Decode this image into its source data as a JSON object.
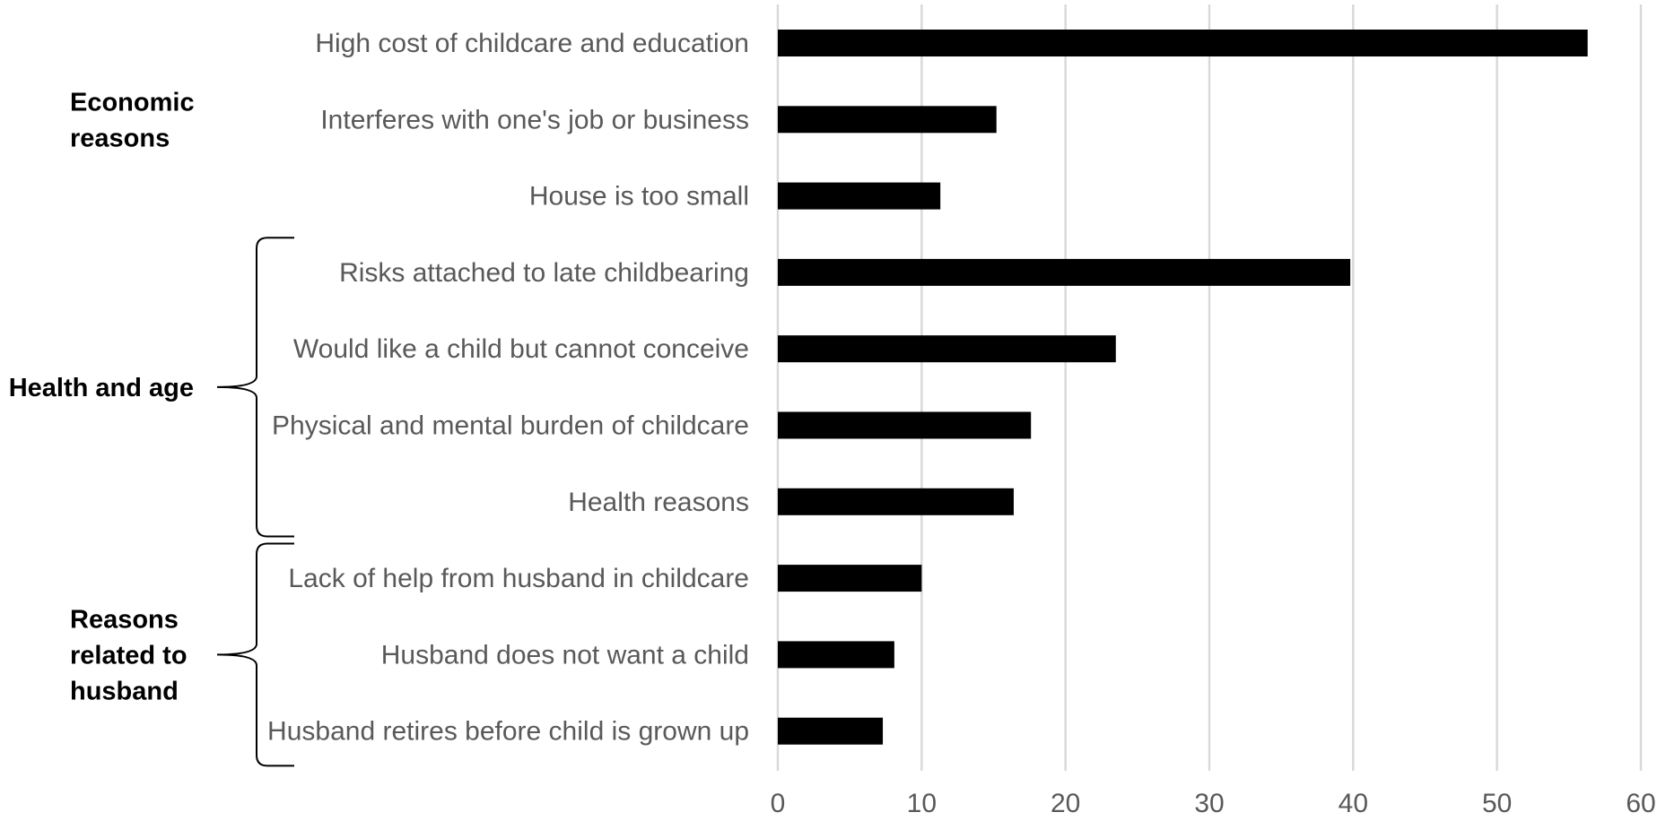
{
  "chart_data": {
    "type": "bar",
    "orientation": "horizontal",
    "title": "",
    "xlabel": "",
    "ylabel": "",
    "xlim": [
      0,
      60
    ],
    "x_ticks": [
      "0",
      "10",
      "20",
      "30",
      "40",
      "50",
      "60"
    ],
    "grid": "vertical",
    "legend": "none",
    "bar_color": "#000000",
    "categories": [
      "High cost of childcare and education",
      "Interferes with one's job or business",
      "House is too small",
      "Risks attached to late childbearing",
      "Would like a child but cannot conceive",
      "Physical and mental burden of childcare",
      "Health reasons",
      "Lack of help from husband in childcare",
      "Husband does not want a child",
      "Husband retires before child is grown up"
    ],
    "values": [
      56.3,
      15.2,
      11.3,
      39.8,
      23.5,
      17.6,
      16.4,
      10.0,
      8.1,
      7.3
    ],
    "groups": [
      {
        "label_lines": [
          "Economic",
          "reasons"
        ],
        "start": 0,
        "end": 2,
        "bracket": false
      },
      {
        "label_lines": [
          "Health and age"
        ],
        "start": 3,
        "end": 6,
        "bracket": true
      },
      {
        "label_lines": [
          "Reasons",
          "related to",
          "husband"
        ],
        "start": 7,
        "end": 9,
        "bracket": true
      }
    ]
  }
}
